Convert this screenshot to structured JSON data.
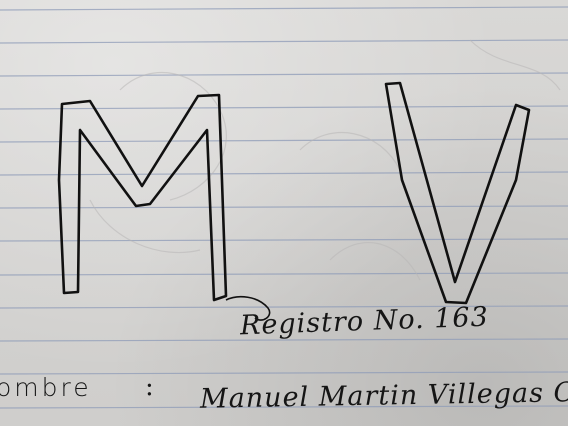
{
  "notebook": {
    "paper_color": "#d6d5d3",
    "rule_color": "#8f9cb8",
    "ink_color": "#111111"
  },
  "initials": {
    "first": "M",
    "second": "V"
  },
  "registration": {
    "text": "Registro No. 163"
  },
  "name_line": {
    "label": "ombre",
    "separator": ":",
    "value": "Manuel Martin Villegas Ortiz"
  }
}
